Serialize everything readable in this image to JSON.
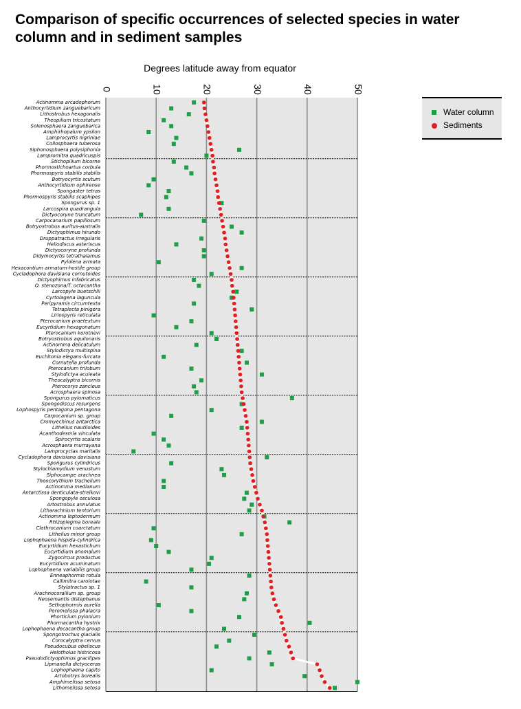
{
  "chart_data": {
    "type": "scatter",
    "title": "Comparison of specific occurrences of selected species in water column and in sediment samples",
    "xlabel": "Degrees latitude away from equator",
    "xlim": [
      0,
      50
    ],
    "xticks": [
      0,
      10,
      20,
      30,
      40,
      50
    ],
    "grid": true,
    "legend_position": "top-right",
    "colors": {
      "water_column": "#1f9e4a",
      "sediments": "#e02020",
      "plot_bg": "#e6e6e6"
    },
    "categories": [
      "Actinomma arcadophorum",
      "Anthocyrtidium zanguebaricum",
      "Lithostrobus hexagonalis",
      "Theopilium tricostatum",
      "Solenosphaera zanguebarica",
      "Amphirhopalum ypsilon",
      "Lamprocyrtis nigriniae",
      "Collosphaera tuberosa",
      "Siphonosphaera polysiphonia",
      "Lampromitra quadricuspis",
      "Stichopilium bicorne",
      "Phormostichoartus corbula",
      "Phormospyris stabilis stabilis",
      "Botryocyrtis scutum",
      "Anthocyrtidium ophirense",
      "Spongaster tetras",
      "Phormospyris stabilis scaphipes",
      "Spongurus sp. 1",
      "Larcospira quadrangula",
      "Dictyocoryne truncatum",
      "Carpocanarium papillosum",
      "Botryostrobus auritus-australis",
      "Dictyophimus hirundo",
      "Druppatractus irregularis",
      "Heliodiscus asteriscus",
      "Dictyocoryne profunda",
      "Didymocyrtis tetrathalamus",
      "Pylolena armata",
      "Hexacontium armatum-hostile group",
      "Cycladophora davisiana cornutoides",
      "Dictyophimus infabricatus",
      "O. stenozona/T. octacantha",
      "Larcopyle buetschlii",
      "Cyrtolagena laguncula",
      "Peripyramis circumtexta",
      "Tetraplecta pinigera",
      "Liriospyris reticulata",
      "Pterocanium praetextum",
      "Eucyrtidium hexagonatum",
      "Pterocanium korotnevi",
      "Botryostrobus aquilonaris",
      "Actinomma delicatulum",
      "Stylodictya multispina",
      "Euchitonia elegans-furcata",
      "Cornutella profunda",
      "Pterocanium trilobum",
      "Stylodictya aculeata",
      "Theocalyptra bicornis",
      "Pterocorys zancleus",
      "Acrosphaera spinosa",
      "Spongurus pylomaticus",
      "Spongodiscus resurgens",
      "Lophospyris pentagona pentagona",
      "Carpocanium sp. group",
      "Cromyechinus antarctica",
      "Lithelius nautiloides",
      "Acanthodesmia vinculata",
      "Spirocyrtis scalaris",
      "Acrosphaera murrayana",
      "Lamprocyclas maritalis",
      "Cycladophora davisiana davisiana",
      "Spongurus cylindricus",
      "Stylochlamydium venustum",
      "Siphocampe arachnea",
      "Theocorythium trachelium",
      "Actinomma medianum",
      "Antarctissa denticulata-strelkovi",
      "Spongopyle osculosa",
      "Artostrobus annulatus",
      "Litharachnium tentorium",
      "Actinomma leptodermum",
      "Rhizoplegma boreale",
      "Clathrocanium coarctatum",
      "Lithelius minor group",
      "Lophophaena hispida-cylindrica",
      "Eucyrtidium hexastichum",
      "Eucyrtidium anomalum",
      "Zygocircus productus",
      "Eucyrtidium acuminatum",
      "Lophophaena variabilis group",
      "Enneaphormis rotula",
      "Callimitra carolotae",
      "Stylatractus sp. 1",
      "Arachnocorallium sp. group",
      "Neosemantis distephanus",
      "Sethophormis aurelia",
      "Peromelissa phalacra",
      "Phorticium pylonium",
      "Phormacantha hystrix",
      "Lophophaena decacantha group",
      "Spongotrochus glacialis",
      "Corocalyptra cervus",
      "Pseudocubus obeliscus",
      "Helotholus histricosa",
      "Pseudodictyophimus gracilipes",
      "Lipmanella dictyoceras",
      "Lophophaena capito",
      "Artobotrys borealis",
      "Amphimelissa setosa",
      "Lithomelissa setosa"
    ],
    "series": [
      {
        "name": "Water column",
        "marker": "square",
        "color": "#1f9e4a",
        "values": [
          17.5,
          13,
          16.5,
          11.5,
          13,
          8.5,
          14,
          13.5,
          26.5,
          20,
          13.5,
          16,
          17,
          9.5,
          8.5,
          12.5,
          12,
          23,
          12.5,
          7,
          19.5,
          25,
          27,
          19,
          14,
          19.5,
          19.5,
          10.5,
          27,
          21,
          17.5,
          18.5,
          26,
          25,
          17.5,
          29,
          9.5,
          17,
          14,
          21,
          22,
          18,
          27,
          11.5,
          28,
          17,
          31,
          19,
          17.5,
          18,
          37,
          27,
          21,
          13,
          31,
          27,
          9.5,
          11.5,
          12.5,
          5.5,
          32,
          13,
          23,
          23.5,
          11.5,
          11.5,
          28,
          27.5,
          29,
          28.5,
          31.5,
          36.5,
          9.5,
          27,
          9,
          10,
          12.5,
          21,
          20.5,
          17,
          28.5,
          8,
          17,
          28,
          27.5,
          10.5,
          17,
          26.5,
          40.5,
          23.5,
          29.5,
          24.5,
          22,
          32.5,
          28.5,
          33,
          21,
          39.5,
          50,
          45.5
        ]
      },
      {
        "name": "Sediments",
        "marker": "circle",
        "color": "#e02020",
        "values": [
          19.5,
          19.6,
          19.8,
          20,
          20.2,
          20.4,
          20.6,
          20.8,
          21,
          21.2,
          21.3,
          21.5,
          21.6,
          21.8,
          22,
          22.2,
          22.3,
          22.5,
          22.7,
          22.9,
          23.1,
          23.3,
          23.5,
          23.7,
          23.8,
          24,
          24.2,
          24.4,
          24.6,
          24.8,
          25,
          25.1,
          25.3,
          25.4,
          25.5,
          25.6,
          25.7,
          25.8,
          25.9,
          26,
          26.1,
          26.2,
          26.3,
          26.4,
          26.5,
          26.6,
          26.7,
          26.8,
          26.9,
          27,
          27.2,
          27.4,
          27.6,
          27.8,
          28,
          28.1,
          28.2,
          28.3,
          28.4,
          28.5,
          28.6,
          28.7,
          28.9,
          29.1,
          29.3,
          29.6,
          29.9,
          30.2,
          30.6,
          31,
          31.3,
          31.6,
          31.8,
          32,
          32.1,
          32.2,
          32.3,
          32.4,
          32.5,
          32.6,
          32.7,
          32.8,
          32.9,
          33.1,
          33.4,
          33.8,
          34.3,
          34.8,
          35,
          35.3,
          35.6,
          35.9,
          36.4,
          36.8,
          37.2,
          42,
          42.5,
          42.9,
          43.5,
          44.5
        ]
      }
    ]
  }
}
